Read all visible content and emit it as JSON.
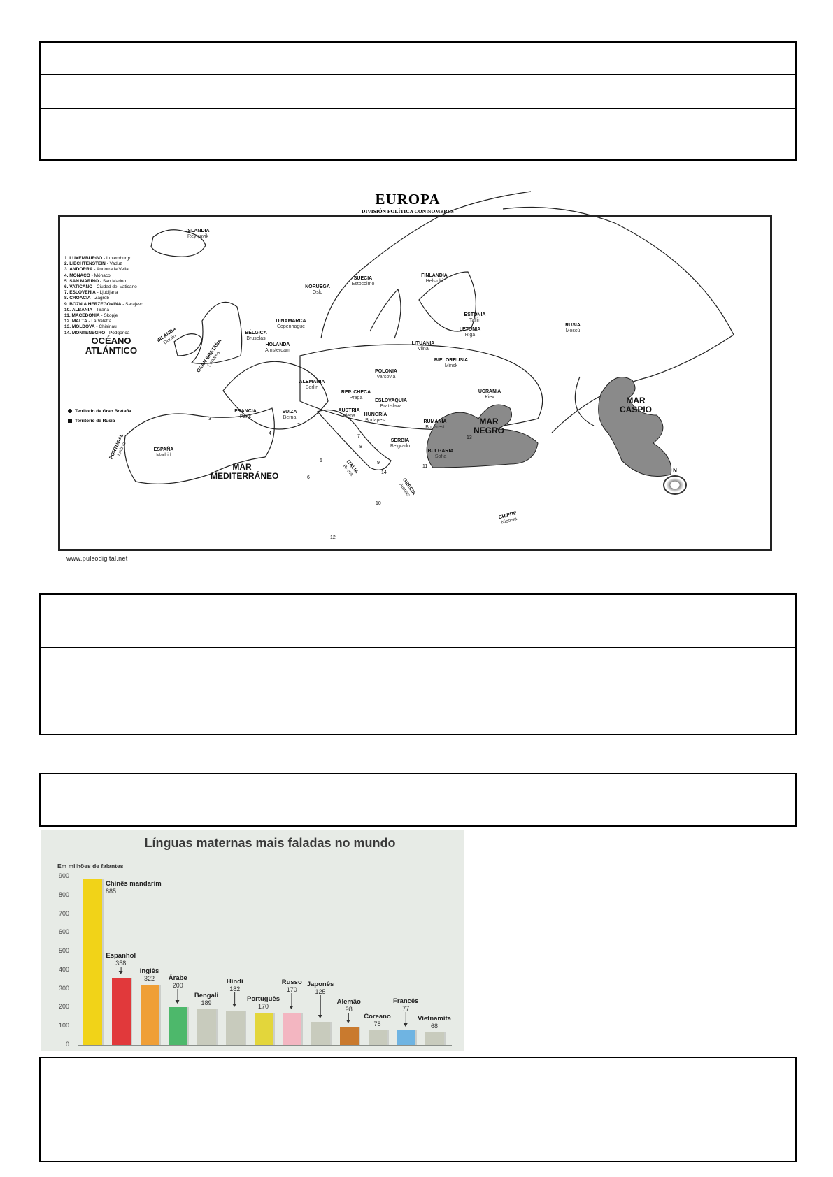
{
  "map": {
    "title": "EUROPA",
    "subtitle": "DIVISIÓN POLÍTICA CON NOMBRES",
    "legend_list": [
      {
        "n": "1.",
        "country": "LUXEMBURGO",
        "capital": "Luxemburgo"
      },
      {
        "n": "2.",
        "country": "LIECHTENSTEIN",
        "capital": "Vaduz"
      },
      {
        "n": "3.",
        "country": "ANDORRA",
        "capital": "Andorra la Vella"
      },
      {
        "n": "4.",
        "country": "MÓNACO",
        "capital": "Mónaco"
      },
      {
        "n": "5.",
        "country": "SAN MARINO",
        "capital": "San Marino"
      },
      {
        "n": "6.",
        "country": "VATICANO",
        "capital": "Ciudad del Vaticano"
      },
      {
        "n": "7.",
        "country": "ESLOVENIA",
        "capital": "Ljubljana"
      },
      {
        "n": "8.",
        "country": "CROACIA",
        "capital": "Zagreb"
      },
      {
        "n": "9.",
        "country": "BOZNIA HERZEGOVINA",
        "capital": "Sarajevo"
      },
      {
        "n": "10.",
        "country": "ALBANIA",
        "capital": "Tirana"
      },
      {
        "n": "11.",
        "country": "MACEDONIA",
        "capital": "Skopje"
      },
      {
        "n": "12.",
        "country": "MALTA",
        "capital": "La Valetta"
      },
      {
        "n": "13.",
        "country": "MOLDOVA",
        "capital": "Chisinau"
      },
      {
        "n": "14.",
        "country": "MONTENEGRO",
        "capital": "Podgorica"
      }
    ],
    "keys": {
      "gb": "Territorio de Gran Bretaña",
      "ru": "Territorio de Rusia"
    },
    "countries": [
      {
        "name": "ISLANDIA",
        "capital": "Reykjavik"
      },
      {
        "name": "NORUEGA",
        "capital": "Oslo"
      },
      {
        "name": "SUECIA",
        "capital": "Estocolmo"
      },
      {
        "name": "FINLANDIA",
        "capital": "Helsinki"
      },
      {
        "name": "ESTONIA",
        "capital": "Tallin"
      },
      {
        "name": "LETONIA",
        "capital": "Riga"
      },
      {
        "name": "LITUANIA",
        "capital": "Vilna"
      },
      {
        "name": "RUSIA",
        "capital": "Moscú"
      },
      {
        "name": "DINAMARCA",
        "capital": "Copenhague"
      },
      {
        "name": "BÉLGICA",
        "capital": "Bruselas"
      },
      {
        "name": "HOLANDA",
        "capital": "Amsterdam"
      },
      {
        "name": "IRLANDA",
        "capital": "Dublin"
      },
      {
        "name": "GRAN BRETAÑA",
        "capital": "Londres"
      },
      {
        "name": "BIELORRUSIA",
        "capital": "Minsk"
      },
      {
        "name": "POLONIA",
        "capital": "Varsovia"
      },
      {
        "name": "ALEMANIA",
        "capital": "Berlín"
      },
      {
        "name": "REP. CHECA",
        "capital": "Praga"
      },
      {
        "name": "ESLOVAQUIA",
        "capital": "Bratislava"
      },
      {
        "name": "UCRANIA",
        "capital": "Kiev"
      },
      {
        "name": "FRANCIA",
        "capital": "París"
      },
      {
        "name": "SUIZA",
        "capital": "Berna"
      },
      {
        "name": "AUSTRIA",
        "capital": "Viena"
      },
      {
        "name": "HUNGRÍA",
        "capital": "Budapest"
      },
      {
        "name": "RUMANIA",
        "capital": "Bucarest"
      },
      {
        "name": "ESPAÑA",
        "capital": "Madrid"
      },
      {
        "name": "PORTUGAL",
        "capital": "Lisboa"
      },
      {
        "name": "SERBIA",
        "capital": "Belgrado"
      },
      {
        "name": "BULGARIA",
        "capital": "Sofía"
      },
      {
        "name": "ITALIA",
        "capital": "Roma"
      },
      {
        "name": "GRECIA",
        "capital": "Atenas"
      },
      {
        "name": "CHIPRE",
        "capital": "Nicosia"
      }
    ],
    "seas": {
      "atlantic": "OCÉANO ATLÁNTICO",
      "med": "MAR MEDITERRÁNEO",
      "black": "MAR NEGRO",
      "caspian": "MAR CASPIO"
    },
    "numbers": [
      "2",
      "3",
      "4",
      "5",
      "6",
      "7",
      "8",
      "9",
      "10",
      "11",
      "12",
      "13",
      "14"
    ],
    "compass_label": "N",
    "website": "www.pulsodigital.net",
    "sea_color": "#8a8a8a"
  },
  "chart_data": {
    "type": "bar",
    "title": "Línguas maternas mais faladas no mundo",
    "ylabel": "Em milhões de falantes",
    "ylim": [
      0,
      900
    ],
    "yticks": [
      "0",
      "100",
      "200",
      "300",
      "400",
      "500",
      "600",
      "700",
      "800",
      "900"
    ],
    "categories": [
      "Chinês mandarim",
      "Espanhol",
      "Inglês",
      "Árabe",
      "Bengali",
      "Hindi",
      "Português",
      "Russo",
      "Japonês",
      "Alemão",
      "Coreano",
      "Francês",
      "Vietnamita"
    ],
    "values": [
      885,
      358,
      322,
      200,
      189,
      182,
      170,
      170,
      125,
      98,
      78,
      77,
      68
    ],
    "colors": [
      "#f1d318",
      "#e1393b",
      "#ef9f36",
      "#4db86b",
      "#c8cbbd",
      "#c8cbbd",
      "#e3d63b",
      "#f3b6c1",
      "#c8cbbd",
      "#c97a2e",
      "#c8cbbd",
      "#6fb4e2",
      "#c8cbbd"
    ],
    "grid": false,
    "legend": "none"
  }
}
